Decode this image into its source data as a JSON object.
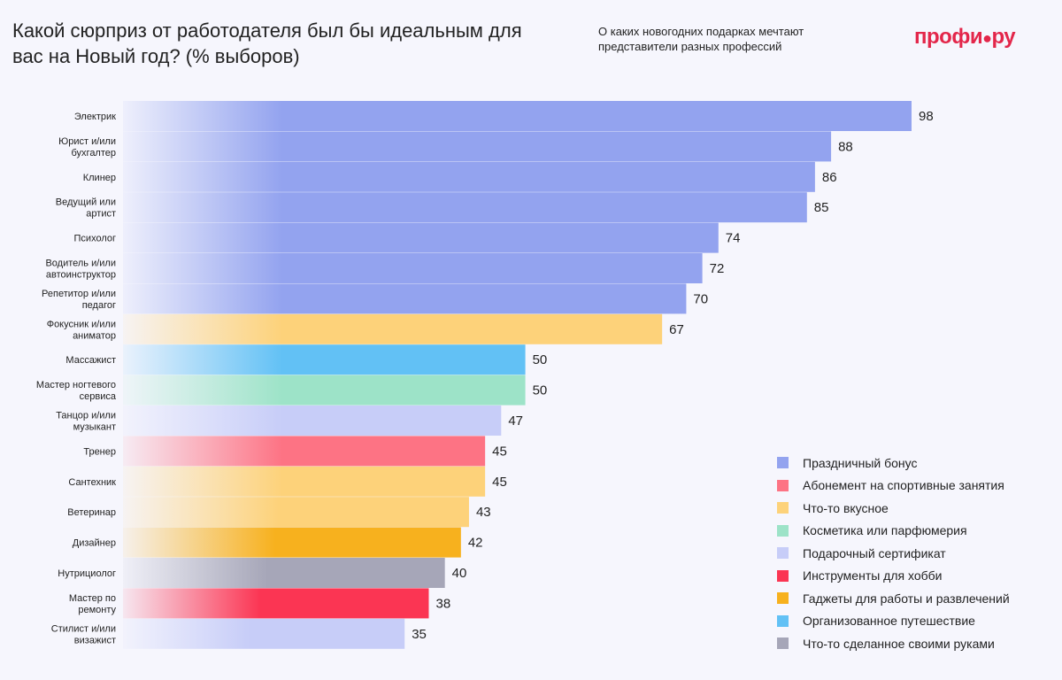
{
  "header": {
    "title": "Какой сюрприз от работодателя был бы идеальным для вас на Новый год? (% выборов)",
    "subtitle": "О каких новогодних подарках мечтают представители разных профессий",
    "logo": "профи.ру"
  },
  "chart_data": {
    "type": "bar",
    "orientation": "horizontal",
    "title": "Какой сюрприз от работодателя был бы идеальным для вас на Новый год? (% выборов)",
    "categories": [
      "Электрик",
      "Юрист и/или бухгалтер",
      "Клинер",
      "Ведущий или артист",
      "Психолог",
      "Водитель и/или автоинструктор",
      "Репетитор и/или педагог",
      "Фокусник и/или аниматор",
      "Массажист",
      "Мастер ногтевого сервиса",
      "Танцор и/или музыкант",
      "Тренер",
      "Сантехник",
      "Ветеринар",
      "Дизайнер",
      "Нутрициолог",
      "Мастер по ремонту",
      "Стилист и/или визажист"
    ],
    "values": [
      98,
      88,
      86,
      85,
      74,
      72,
      70,
      67,
      50,
      50,
      47,
      45,
      45,
      43,
      42,
      40,
      38,
      35
    ],
    "top_choice": [
      "Праздничный бонус",
      "Праздничный бонус",
      "Праздничный бонус",
      "Праздничный бонус",
      "Праздничный бонус",
      "Праздничный бонус",
      "Праздничный бонус",
      "Что-то вкусное",
      "Организованное путешествие",
      "Косметика или парфюмерия",
      "Подарочный сертификат",
      "Абонемент на спортивные занятия",
      "Что-то вкусное",
      "Что-то вкусное",
      "Гаджеты для работы и развлечений",
      "Что-то сделанное своими руками",
      "Инструменты для хобби",
      "Подарочный сертификат"
    ],
    "xlim": [
      0,
      100
    ],
    "grid": false,
    "legend_position": "bottom-right",
    "legend": [
      {
        "name": "Праздничный бонус",
        "color": "#93a3ef"
      },
      {
        "name": "Абонемент на спортивные занятия",
        "color": "#fd7384"
      },
      {
        "name": "Что-то вкусное",
        "color": "#fdd27a"
      },
      {
        "name": "Косметика или парфюмерия",
        "color": "#9de3c8"
      },
      {
        "name": "Подарочный сертификат",
        "color": "#c7cdf8"
      },
      {
        "name": "Инструменты для хобби",
        "color": "#fb3553"
      },
      {
        "name": "Гаджеты для работы и развлечений",
        "color": "#f7b11e"
      },
      {
        "name": "Организованное путешествие",
        "color": "#62c1f5"
      },
      {
        "name": "Что-то сделанное своими руками",
        "color": "#a6a6b8"
      }
    ]
  }
}
